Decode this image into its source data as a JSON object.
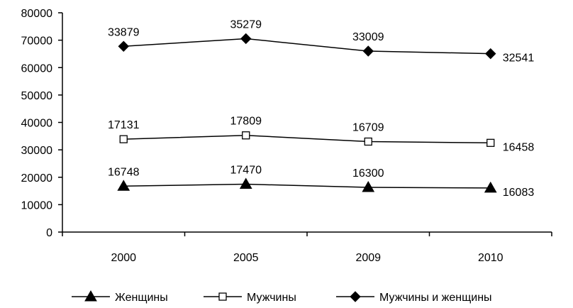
{
  "chart_data": {
    "type": "line",
    "categories": [
      "2000",
      "2005",
      "2009",
      "2010"
    ],
    "ylim": [
      0,
      80000
    ],
    "yticks": [
      0,
      10000,
      20000,
      30000,
      40000,
      50000,
      60000,
      70000,
      80000
    ],
    "grid": false,
    "legend_position": "bottom",
    "series": [
      {
        "name": "Женщины",
        "marker": "triangle",
        "values": [
          16748,
          17470,
          16300,
          16083
        ],
        "labels": [
          "16748",
          "17470",
          "16300",
          "16083"
        ]
      },
      {
        "name": "Мужчины",
        "marker": "square-open",
        "values": [
          33879,
          35279,
          33009,
          32541
        ],
        "labels": [
          "17131",
          "17809",
          "16709",
          "16458"
        ]
      },
      {
        "name": "Мужчины и женщины",
        "marker": "diamond",
        "values": [
          67758,
          70558,
          66018,
          65082
        ],
        "labels": [
          "33879",
          "35279",
          "33009",
          "32541"
        ]
      }
    ],
    "colors": {
      "line": "#000000",
      "marker_fill": "#000000",
      "open_marker_fill": "#ffffff"
    }
  }
}
